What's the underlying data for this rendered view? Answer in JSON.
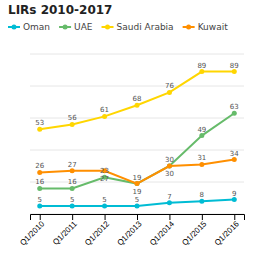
{
  "chart_data": {
    "type": "line",
    "title": "LIRs 2010-2017",
    "categories": [
      "Q1/2010",
      "Q1/2011",
      "Q1/2012",
      "Q1/2013",
      "Q1/2014",
      "Q1/2015",
      "Q1/2016"
    ],
    "series": [
      {
        "name": "Oman",
        "color": "#00bcd4",
        "values": [
          5,
          5,
          5,
          5,
          7,
          8,
          9
        ]
      },
      {
        "name": "UAE",
        "color": "#66bb6a",
        "values": [
          16,
          16,
          23,
          19,
          30,
          49,
          63
        ]
      },
      {
        "name": "Saudi Arabia",
        "color": "#ffd600",
        "values": [
          53,
          56,
          61,
          68,
          76,
          89,
          89
        ]
      },
      {
        "name": "Kuwait",
        "color": "#ff8f00",
        "values": [
          26,
          27,
          27,
          19,
          30,
          31,
          34
        ]
      }
    ],
    "ylim": [
      0,
      100
    ],
    "yticks": [
      0,
      20,
      40,
      60,
      80,
      100
    ],
    "grid": true,
    "legend": "top",
    "marker": "circle",
    "data_labels": true,
    "tick_labels": "x"
  }
}
